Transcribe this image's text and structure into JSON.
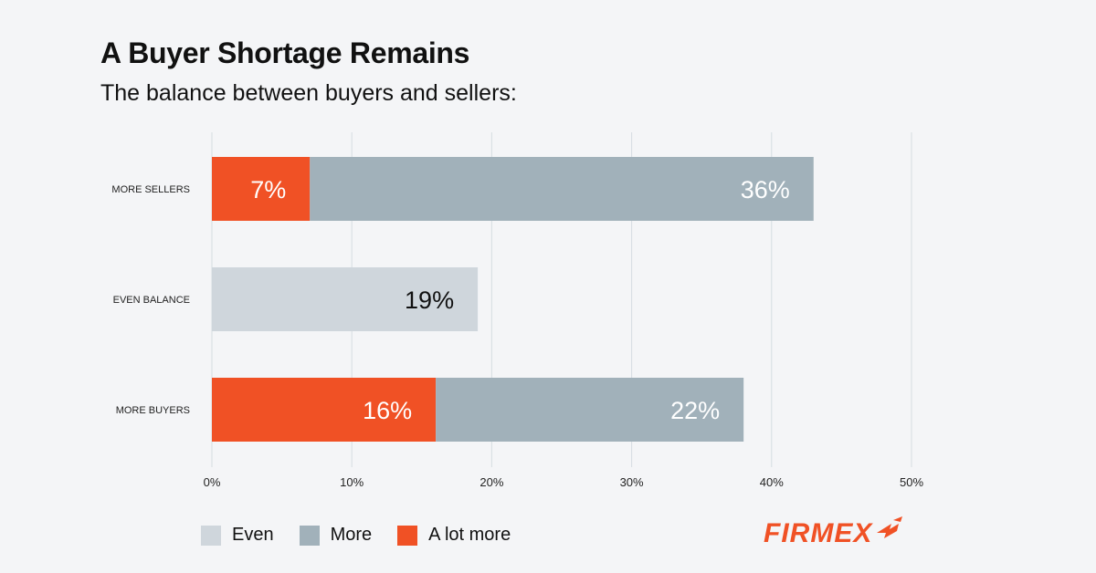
{
  "header": {
    "title": "A Buyer Shortage Remains",
    "subtitle": "The balance between buyers and sellers:"
  },
  "colors": {
    "even": "#cfd6dc",
    "more": "#a1b1ba",
    "a_lot_more": "#f05125",
    "grid": "#d6dde2",
    "brand": "#f05125"
  },
  "chart_data": {
    "type": "bar",
    "orientation": "horizontal",
    "stacked": true,
    "categories": [
      "MORE SELLERS",
      "EVEN BALANCE",
      "MORE BUYERS"
    ],
    "series": [
      {
        "name": "A lot more",
        "values": [
          7,
          0,
          16
        ],
        "labels": [
          "7%",
          "",
          "16%"
        ],
        "color_key": "a_lot_more",
        "label_color": "#ffffff"
      },
      {
        "name": "More",
        "values": [
          36,
          0,
          22
        ],
        "labels": [
          "36%",
          "",
          "22%"
        ],
        "color_key": "more",
        "label_color": "#ffffff"
      },
      {
        "name": "Even",
        "values": [
          0,
          19,
          0
        ],
        "labels": [
          "",
          "19%",
          ""
        ],
        "color_key": "even",
        "label_color": "#111111"
      }
    ],
    "xlim": [
      0,
      50
    ],
    "xticks": [
      0,
      10,
      20,
      30,
      40,
      50
    ],
    "xtick_labels": [
      "0%",
      "10%",
      "20%",
      "30%",
      "40%",
      "50%"
    ],
    "grid": true,
    "legend_position": "bottom-left"
  },
  "legend": [
    {
      "label": "Even",
      "color_key": "even"
    },
    {
      "label": "More",
      "color_key": "more"
    },
    {
      "label": "A lot more",
      "color_key": "a_lot_more"
    }
  ],
  "brand": {
    "name": "FIRMEX",
    "logo_icon": "firmex-chevron-icon"
  }
}
